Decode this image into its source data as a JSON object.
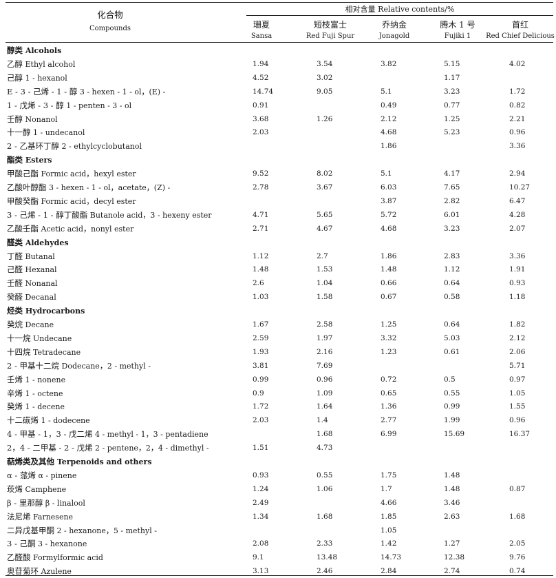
{
  "header": {
    "compound_zh": "化合物",
    "compound_en": "Compounds",
    "relative": "相对含量 Relative contents/%",
    "columns": [
      {
        "zh": "珊夏",
        "en": "Sansa"
      },
      {
        "zh": "短枝富士",
        "en": "Red Fuji Spur"
      },
      {
        "zh": "乔纳金",
        "en": "Jonagold"
      },
      {
        "zh": "腾木 1 号",
        "en": "Fujiki 1"
      },
      {
        "zh": "首红",
        "en": "Red Chief Delicious"
      }
    ]
  },
  "rows": [
    {
      "type": "category",
      "zh": "醇类",
      "en": "Alcohols"
    },
    {
      "type": "data",
      "zh": "乙醇",
      "en": "Ethyl alcohol",
      "v": [
        "1.94",
        "3.54",
        "3.82",
        "5.15",
        "4.02"
      ]
    },
    {
      "type": "data",
      "zh": "己醇",
      "en": "1 - hexanol",
      "v": [
        "4.52",
        "3.02",
        "",
        "1.17",
        ""
      ]
    },
    {
      "type": "data",
      "zh": "E - 3 - 己烯 - 1 - 醇",
      "en": "3 - hexen - 1 - ol，(E) -",
      "v": [
        "14.74",
        "9.05",
        "5.1",
        "3.23",
        "1.72"
      ]
    },
    {
      "type": "data",
      "zh": "1 - 戊烯 - 3 - 醇",
      "en": "1 - penten - 3 - ol",
      "v": [
        "0.91",
        "",
        "0.49",
        "0.77",
        "0.82"
      ]
    },
    {
      "type": "data",
      "zh": "壬醇",
      "en": "Nonanol",
      "v": [
        "3.68",
        "1.26",
        "2.12",
        "1.25",
        "2.21"
      ]
    },
    {
      "type": "data",
      "zh": "十一醇",
      "en": "1 - undecanol",
      "v": [
        "2.03",
        "",
        "4.68",
        "5.23",
        "0.96"
      ]
    },
    {
      "type": "data",
      "zh": "2 - 乙基环丁醇",
      "en": "2 - ethylcyclobutanol",
      "v": [
        "",
        "",
        "1.86",
        "",
        "3.36"
      ]
    },
    {
      "type": "category",
      "zh": "酯类",
      "en": "Esters"
    },
    {
      "type": "data",
      "zh": "甲酸己酯",
      "en": "Formic acid，hexyl ester",
      "v": [
        "9.52",
        "8.02",
        "5.1",
        "4.17",
        "2.94"
      ]
    },
    {
      "type": "data",
      "zh": "乙酸叶醇酯",
      "en": "3 - hexen - 1 - ol，acetate，(Z) -",
      "v": [
        "2.78",
        "3.67",
        "6.03",
        "7.65",
        "10.27"
      ]
    },
    {
      "type": "data",
      "zh": "甲酸癸酯",
      "en": "Formic acid，decyl ester",
      "v": [
        "",
        "",
        "3.87",
        "2.82",
        "6.47"
      ]
    },
    {
      "type": "data",
      "zh": "3 - 己烯 - 1 - 醇丁酸酯",
      "en": "Butanole acid，3 - hexeny ester",
      "v": [
        "4.71",
        "5.65",
        "5.72",
        "6.01",
        "4.28"
      ]
    },
    {
      "type": "data",
      "zh": "乙酸壬酯",
      "en": "Acetic acid，nonyl ester",
      "v": [
        "2.71",
        "4.67",
        "4.68",
        "3.23",
        "2.07"
      ]
    },
    {
      "type": "category",
      "zh": "醛类",
      "en": "Aldehydes"
    },
    {
      "type": "data",
      "zh": "丁醛",
      "en": "Butanal",
      "v": [
        "1.12",
        "2.7",
        "1.86",
        "2.83",
        "3.36"
      ]
    },
    {
      "type": "data",
      "zh": "己醛",
      "en": "Hexanal",
      "v": [
        "1.48",
        "1.53",
        "1.48",
        "1.12",
        "1.91"
      ]
    },
    {
      "type": "data",
      "zh": "壬醛",
      "en": "Nonanal",
      "v": [
        "2.6",
        "1.04",
        "0.66",
        "0.64",
        "0.93"
      ]
    },
    {
      "type": "data",
      "zh": "癸醛",
      "en": "Decanal",
      "v": [
        "1.03",
        "1.58",
        "0.67",
        "0.58",
        "1.18"
      ]
    },
    {
      "type": "category",
      "zh": "烃类",
      "en": "Hydrocarbons"
    },
    {
      "type": "data",
      "zh": "癸烷",
      "en": "Decane",
      "v": [
        "1.67",
        "2.58",
        "1.25",
        "0.64",
        "1.82"
      ]
    },
    {
      "type": "data",
      "zh": "十一烷",
      "en": "Undecane",
      "v": [
        "2.59",
        "1.97",
        "3.32",
        "5.03",
        "2.12"
      ]
    },
    {
      "type": "data",
      "zh": "十四烷",
      "en": "Tetradecane",
      "v": [
        "1.93",
        "2.16",
        "1.23",
        "0.61",
        "2.06"
      ]
    },
    {
      "type": "data",
      "zh": "2 - 甲基十二烷",
      "en": "Dodecane，2 - methyl -",
      "v": [
        "3.81",
        "7.69",
        "",
        "",
        "5.71"
      ]
    },
    {
      "type": "data",
      "zh": "壬烯",
      "en": "1 - nonene",
      "v": [
        "0.99",
        "0.96",
        "0.72",
        "0.5",
        "0.97"
      ]
    },
    {
      "type": "data",
      "zh": "辛烯",
      "en": "1 - octene",
      "v": [
        "0.9",
        "1.09",
        "0.65",
        "0.55",
        "1.05"
      ]
    },
    {
      "type": "data",
      "zh": "癸烯",
      "en": "1 - decene",
      "v": [
        "1.72",
        "1.64",
        "1.36",
        "0.99",
        "1.55"
      ]
    },
    {
      "type": "data",
      "zh": "十二碳烯",
      "en": "1 - dodecene",
      "v": [
        "2.03",
        "1.4",
        "2.77",
        "1.99",
        "0.96"
      ]
    },
    {
      "type": "data",
      "zh": "4 - 甲基 - 1，3 - 戊二烯",
      "en": "4 - methyl - 1，3 - pentadiene",
      "v": [
        "",
        "1.68",
        "6.99",
        "15.69",
        "16.37"
      ]
    },
    {
      "type": "data",
      "zh": "2，4 - 二甲基 - 2 - 戊烯",
      "en": "2 - pentene，2，4 - dimethyl -",
      "v": [
        "1.51",
        "4.73",
        "",
        "",
        ""
      ]
    },
    {
      "type": "category",
      "zh": "萜烯类及其他",
      "en": "Terpenoids and others"
    },
    {
      "type": "data",
      "zh": "α - 蒎烯",
      "en": "α - pinene",
      "v": [
        "0.93",
        "0.55",
        "1.75",
        "1.48",
        ""
      ]
    },
    {
      "type": "data",
      "zh": "莰烯",
      "en": "Camphene",
      "v": [
        "1.24",
        "1.06",
        "1.7",
        "1.48",
        "0.87"
      ]
    },
    {
      "type": "data",
      "zh": "β - 里那醇",
      "en": "β - linalool",
      "v": [
        "2.49",
        "",
        "4.66",
        "3.46",
        ""
      ]
    },
    {
      "type": "data",
      "zh": "法尼烯",
      "en": "Farnesene",
      "v": [
        "1.34",
        "1.68",
        "1.85",
        "2.63",
        "1.68"
      ]
    },
    {
      "type": "data",
      "zh": "二异戊基甲酮",
      "en": "2 - hexanone，5 - methyl -",
      "v": [
        "",
        "",
        "1.05",
        "",
        ""
      ]
    },
    {
      "type": "data",
      "zh": "3 - 己酮",
      "en": "3 - hexanone",
      "v": [
        "2.08",
        "2.33",
        "1.42",
        "1.27",
        "2.05"
      ]
    },
    {
      "type": "data",
      "zh": "乙醛酸",
      "en": "Formylformic acid",
      "v": [
        "9.1",
        "13.48",
        "14.73",
        "12.38",
        "9.76"
      ]
    },
    {
      "type": "data",
      "zh": "奥苷菊环",
      "en": "Azulene",
      "v": [
        "3.13",
        "2.46",
        "2.84",
        "2.74",
        "0.74"
      ]
    }
  ]
}
